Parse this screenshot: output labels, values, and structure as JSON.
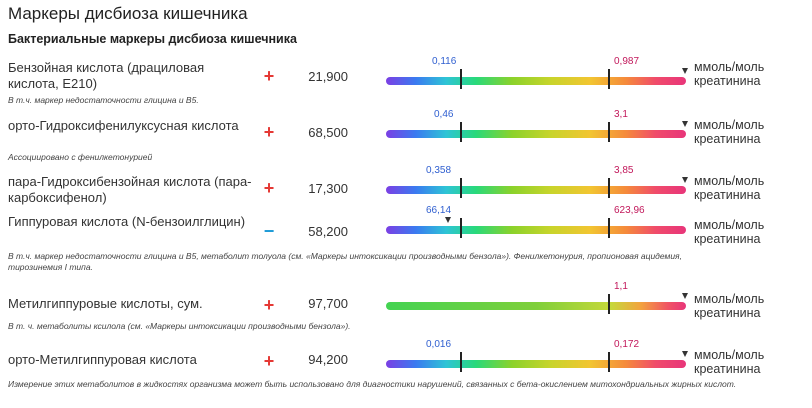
{
  "title": "Маркеры дисбиоза кишечника",
  "section": "Бактериальные маркеры дисбиоза кишечника",
  "unit": "ммоль/моль креатинина",
  "rows": [
    {
      "name": "Бензойная кислота (драциловая кислота, E210)",
      "note": "В т.ч. маркер недостаточности глицина и B5.",
      "sign": "+",
      "value": "21,900",
      "low": "0,116",
      "high": "0,987",
      "marker_frac": 1.0
    },
    {
      "name": "орто-Гидроксифенилуксусная кислота",
      "note": "Ассоциировано с фенилкетонурией",
      "sign": "+",
      "value": "68,500",
      "low": "0,46",
      "high": "3,1",
      "marker_frac": 1.0
    },
    {
      "name": "пара-Гидроксибензойная кислота (пара-карбоксифенол)",
      "note": "",
      "sign": "+",
      "value": "17,300",
      "low": "0,358",
      "high": "3,85",
      "marker_frac": 1.0
    },
    {
      "name": "Гиппуровая кислота (N-бензоилглицин)",
      "note": "В т.ч. маркер недостаточности глицина и B5, метаболит толуола (см. «Маркеры интоксикации производными бензола»). Фенилкетонурия, пропионовая ацидемия, тирозинемия I типа.",
      "sign": "−",
      "value": "58,200",
      "low": "66,14",
      "high": "623,96",
      "marker_frac": 0.21
    },
    {
      "name": "Метилгиппуровые кислоты, сум.",
      "note": "В т. ч. метаболиты ксилола (см. «Маркеры интоксикации производными бензола»).",
      "sign": "+",
      "value": "97,700",
      "low": "",
      "high": "1,1",
      "marker_frac": 1.0
    },
    {
      "name": "орто-Метилгиппуровая кислота",
      "note": "",
      "sign": "+",
      "value": "94,200",
      "low": "0,016",
      "high": "0,172",
      "marker_frac": 1.0
    }
  ],
  "footnote": "Измерение этих метаболитов в жидкостях организма может быть использовано для диагностики нарушений, связанных с бета-окислением митохондриальных жирных кислот."
}
